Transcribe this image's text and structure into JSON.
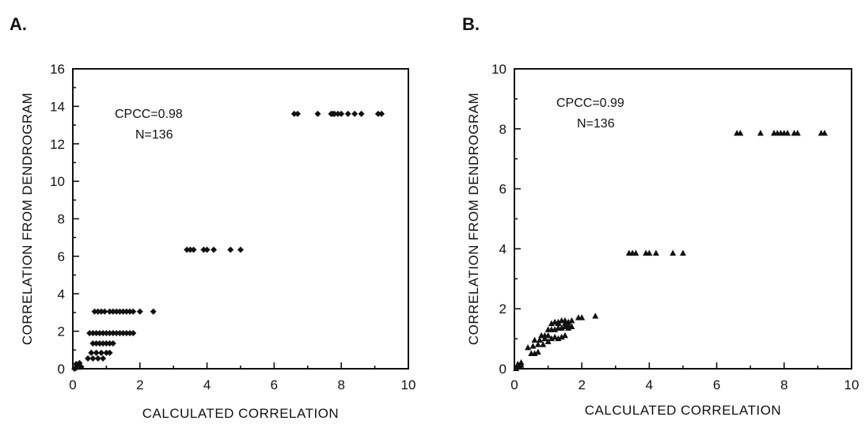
{
  "chart_data": [
    {
      "type": "scatter",
      "panel": "A.",
      "title": "",
      "xlabel": "CALCULATED CORRELATION",
      "ylabel": "CORRELATION FROM DENDROGRAM",
      "xlim": [
        0,
        10
      ],
      "ylim": [
        0,
        16
      ],
      "xticks": [
        "0",
        "2",
        "4",
        "6",
        "8",
        "10"
      ],
      "yticks": [
        "0",
        "2",
        "4",
        "6",
        "8",
        "10",
        "12",
        "14",
        "16"
      ],
      "annotation": [
        "CPCC=0.98",
        "N=136"
      ],
      "marker": "diamond",
      "grid": false,
      "series": [
        {
          "x": [
            0.05,
            0.1,
            0.15,
            0.2,
            0.25,
            0.1,
            0.2,
            0.45,
            0.6,
            0.75,
            0.9,
            0.55,
            0.7,
            0.85,
            1.0,
            1.1,
            0.6,
            0.7,
            0.8,
            0.9,
            1.0,
            1.1,
            1.2,
            0.5,
            0.6,
            0.7,
            0.8,
            0.9,
            1.0,
            1.1,
            1.2,
            1.3,
            1.4,
            1.5,
            1.6,
            1.7,
            1.8,
            0.65,
            0.75,
            0.85,
            0.95,
            1.1,
            1.2,
            1.3,
            1.4,
            1.5,
            1.6,
            1.7,
            1.8,
            2.0,
            2.4,
            3.4,
            3.5,
            3.6,
            3.9,
            4.0,
            4.2,
            4.7,
            5.0,
            6.6,
            6.7,
            7.3,
            7.7,
            7.75,
            7.8,
            7.9,
            8.0,
            8.2,
            8.4,
            8.6,
            9.1,
            9.2
          ],
          "y": [
            0.0,
            0.05,
            0.1,
            0.1,
            0.1,
            0.25,
            0.3,
            0.55,
            0.55,
            0.55,
            0.55,
            0.85,
            0.85,
            0.85,
            0.85,
            0.85,
            1.35,
            1.35,
            1.35,
            1.35,
            1.35,
            1.35,
            1.35,
            1.9,
            1.9,
            1.9,
            1.9,
            1.9,
            1.9,
            1.9,
            1.9,
            1.9,
            1.9,
            1.9,
            1.9,
            1.9,
            1.9,
            3.05,
            3.05,
            3.05,
            3.05,
            3.05,
            3.05,
            3.05,
            3.05,
            3.05,
            3.05,
            3.05,
            3.05,
            3.05,
            3.05,
            6.35,
            6.35,
            6.35,
            6.35,
            6.35,
            6.35,
            6.35,
            6.35,
            13.6,
            13.6,
            13.6,
            13.6,
            13.6,
            13.6,
            13.6,
            13.6,
            13.6,
            13.6,
            13.6,
            13.6,
            13.6
          ]
        }
      ]
    },
    {
      "type": "scatter",
      "panel": "B.",
      "title": "",
      "xlabel": "CALCULATED CORRELATION",
      "ylabel": "CORRELATION FROM DENDROGRAM",
      "xlim": [
        0,
        10
      ],
      "ylim": [
        0,
        10
      ],
      "xticks": [
        "0",
        "2",
        "4",
        "6",
        "8",
        "10"
      ],
      "yticks": [
        "0",
        "2",
        "4",
        "6",
        "8",
        "10"
      ],
      "annotation": [
        "CPCC=0.99",
        "N=136"
      ],
      "marker": "triangle",
      "grid": false,
      "series": [
        {
          "x": [
            0.05,
            0.1,
            0.15,
            0.2,
            0.1,
            0.2,
            0.5,
            0.6,
            0.7,
            0.4,
            0.55,
            0.7,
            0.85,
            0.6,
            0.75,
            0.9,
            1.0,
            1.1,
            0.8,
            0.9,
            1.0,
            1.2,
            1.3,
            1.4,
            1.5,
            1.0,
            1.1,
            1.2,
            1.3,
            1.4,
            1.5,
            1.6,
            1.7,
            1.2,
            1.3,
            1.4,
            1.5,
            1.6,
            1.7,
            1.9,
            2.0,
            2.4,
            1.1,
            1.3,
            1.5,
            1.6,
            3.4,
            3.5,
            3.6,
            3.9,
            4.0,
            4.2,
            4.7,
            5.0,
            6.6,
            6.7,
            7.3,
            7.7,
            7.8,
            7.9,
            8.0,
            8.1,
            8.3,
            8.4,
            9.1,
            9.2
          ],
          "y": [
            0.0,
            0.05,
            0.1,
            0.12,
            0.15,
            0.2,
            0.5,
            0.5,
            0.55,
            0.7,
            0.75,
            0.8,
            0.8,
            0.95,
            0.95,
            1.0,
            0.9,
            1.0,
            1.1,
            1.1,
            1.1,
            1.05,
            1.0,
            1.05,
            1.1,
            1.3,
            1.3,
            1.3,
            1.35,
            1.35,
            1.4,
            1.35,
            1.4,
            1.55,
            1.55,
            1.6,
            1.6,
            1.55,
            1.6,
            1.7,
            1.7,
            1.75,
            1.5,
            1.5,
            1.5,
            1.45,
            3.85,
            3.85,
            3.85,
            3.85,
            3.85,
            3.85,
            3.85,
            3.85,
            7.85,
            7.85,
            7.85,
            7.85,
            7.85,
            7.85,
            7.85,
            7.85,
            7.85,
            7.85,
            7.85,
            7.85
          ]
        }
      ]
    }
  ]
}
